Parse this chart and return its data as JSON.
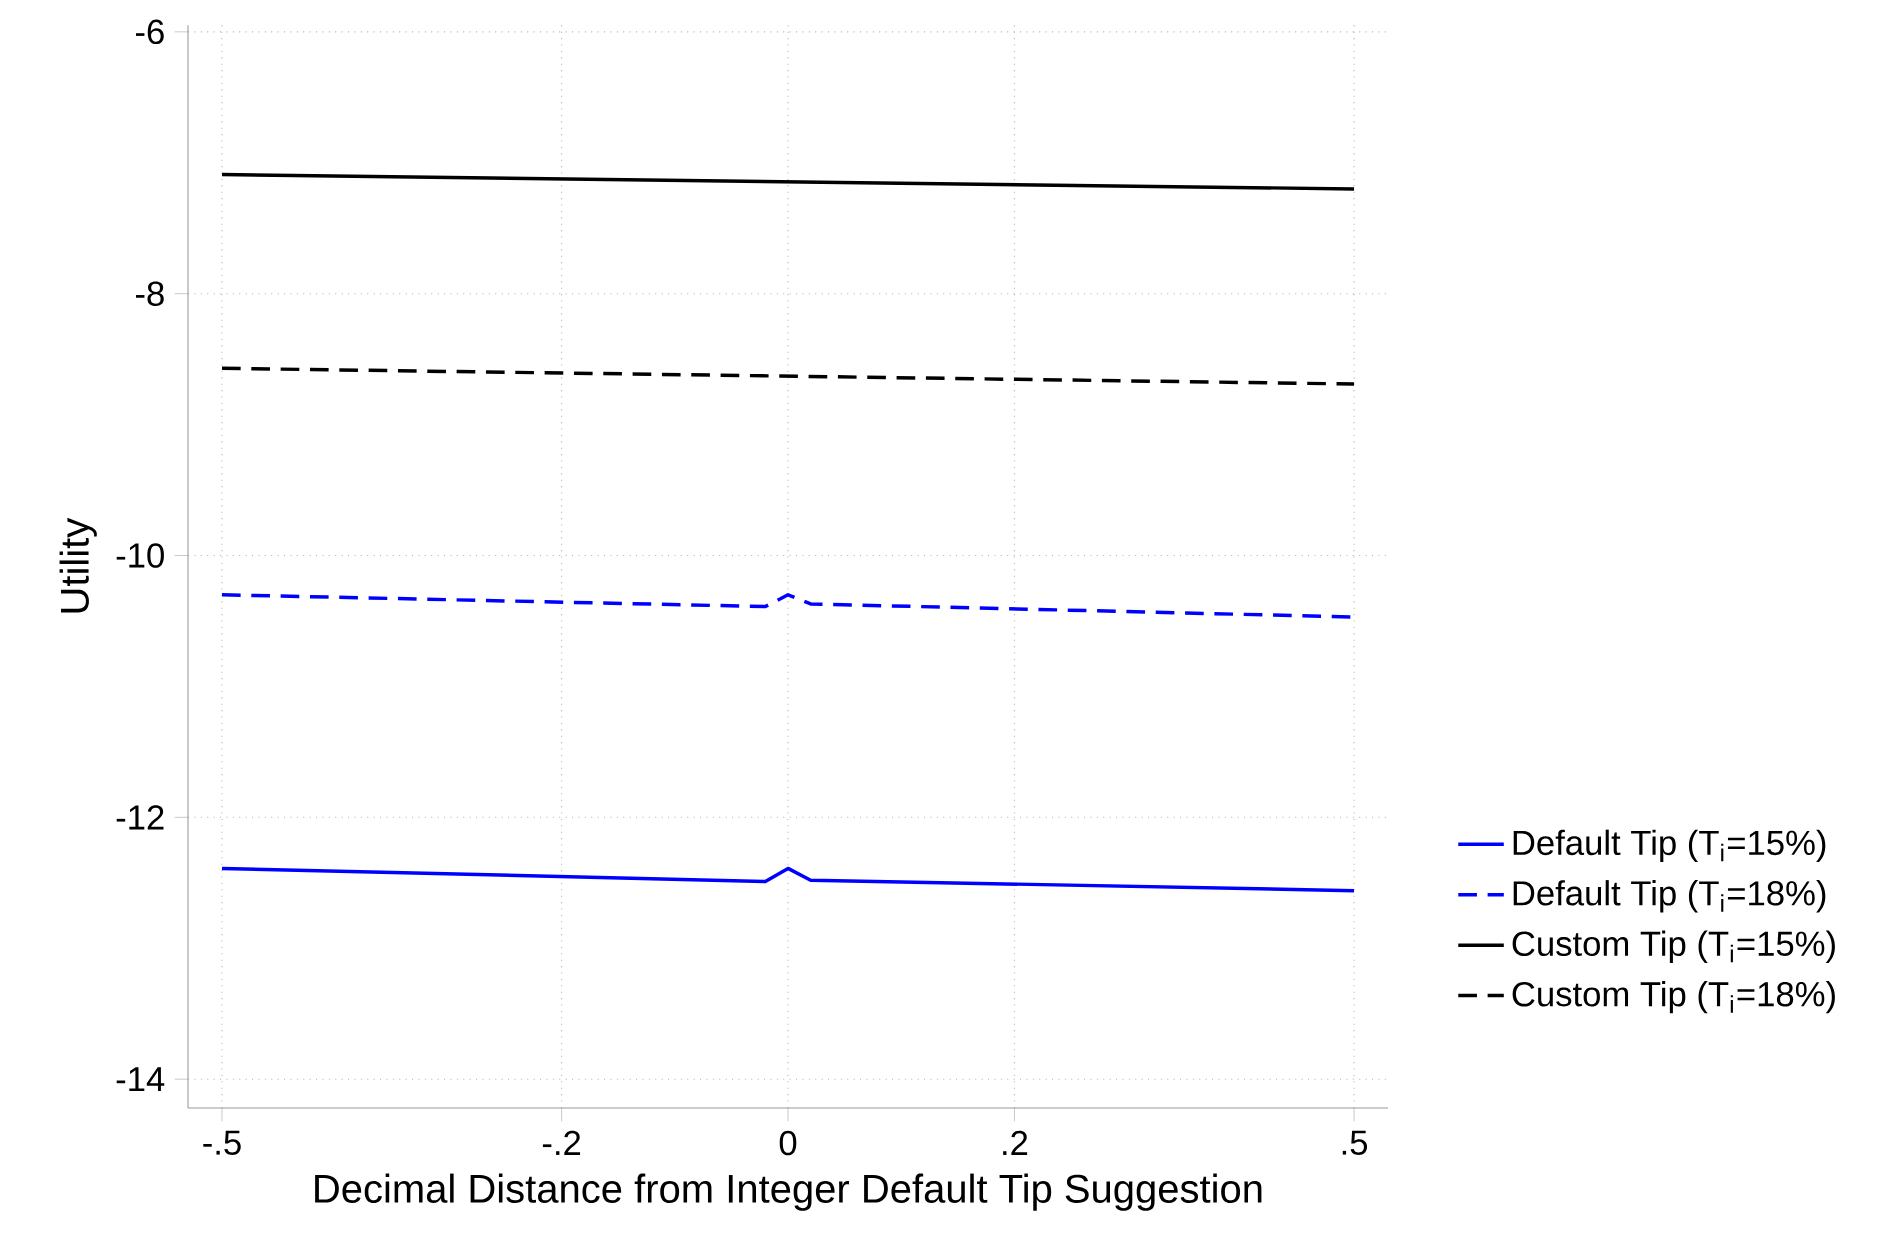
{
  "chart_data": {
    "type": "line",
    "xlabel": "Decimal Distance from Integer Default Tip Suggestion",
    "ylabel": "Utility",
    "xlim": [
      -0.53,
      0.53
    ],
    "ylim": [
      -14.22,
      -5.95
    ],
    "xticks": [
      {
        "value": -0.5,
        "label": "-.5"
      },
      {
        "value": -0.2,
        "label": "-.2"
      },
      0,
      {
        "value": 0.2,
        "label": ".2"
      },
      {
        "value": 0.5,
        "label": ".5"
      }
    ],
    "yticks": [
      -14,
      -12,
      -10,
      -8,
      -6
    ],
    "grid": true,
    "legend": "right",
    "series": [
      {
        "name": "Default Tip (T$_{i}$=15%)",
        "color": "#0000ff",
        "line_style": "solid",
        "x": [
          -0.5,
          -0.02,
          0,
          0.02,
          0.5
        ],
        "values": [
          -12.39,
          -12.49,
          -12.39,
          -12.48,
          -12.56
        ]
      },
      {
        "name": "Default Tip (T$_{i}$=18%)",
        "color": "#0000ff",
        "line_style": "dashed",
        "x": [
          -0.5,
          -0.02,
          0,
          0.02,
          0.5
        ],
        "values": [
          -10.3,
          -10.39,
          -10.3,
          -10.37,
          -10.47
        ]
      },
      {
        "name": "Custom Tip (T$_{i}$=15%)",
        "color": "#000000",
        "line_style": "solid",
        "x": [
          -0.5,
          0.5
        ],
        "values": [
          -7.09,
          -7.2
        ]
      },
      {
        "name": "Custom Tip (T$_{i}$=18%)",
        "color": "#000000",
        "line_style": "dashed",
        "x": [
          -0.5,
          0.5
        ],
        "values": [
          -8.57,
          -8.69
        ]
      }
    ]
  }
}
